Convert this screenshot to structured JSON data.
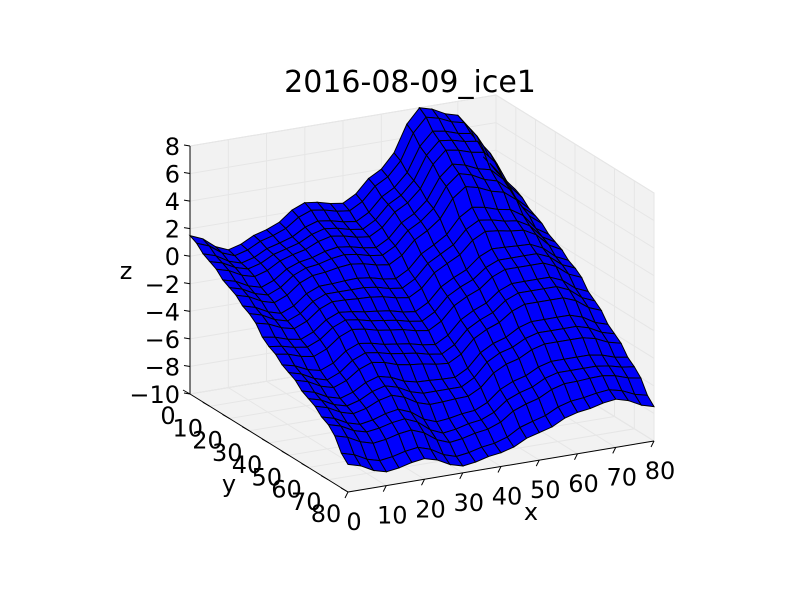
{
  "chart_data": {
    "type": "surface3d",
    "title": "2016-08-09_ice1",
    "xlabel": "x",
    "ylabel": "y",
    "zlabel": "z",
    "xlim": [
      0,
      80
    ],
    "ylim": [
      0,
      80
    ],
    "zlim": [
      -10,
      8
    ],
    "xticks": [
      0,
      10,
      20,
      30,
      40,
      50,
      60,
      70,
      80
    ],
    "yticks": [
      0,
      10,
      20,
      30,
      40,
      50,
      60,
      70,
      80
    ],
    "zticks": [
      -10,
      -8,
      -6,
      -4,
      -2,
      0,
      2,
      4,
      6,
      8
    ],
    "grid": true,
    "surface": {
      "x": [
        0,
        10,
        20,
        30,
        40,
        50,
        60,
        70,
        80
      ],
      "y": [
        0,
        10,
        20,
        30,
        40,
        50,
        60,
        70,
        80
      ],
      "z": [
        [
          1.5,
          0.0,
          1.0,
          2.5,
          2.0,
          4.0,
          8.0,
          7.0,
          2.5
        ],
        [
          0.5,
          -0.5,
          0.5,
          1.5,
          1.0,
          3.0,
          6.5,
          6.0,
          2.0
        ],
        [
          -0.5,
          -1.5,
          0.0,
          0.5,
          0.0,
          2.0,
          5.0,
          4.0,
          1.0
        ],
        [
          -1.5,
          -2.5,
          -1.0,
          -1.0,
          -1.5,
          0.5,
          2.5,
          2.0,
          0.0
        ],
        [
          -3.0,
          -3.5,
          -2.0,
          -2.5,
          -3.0,
          -1.0,
          0.5,
          0.5,
          -1.0
        ],
        [
          -4.0,
          -5.0,
          -3.5,
          -4.0,
          -4.5,
          -2.5,
          -1.0,
          -1.0,
          -2.5
        ],
        [
          -5.0,
          -6.0,
          -5.0,
          -6.0,
          -6.0,
          -4.0,
          -3.0,
          -3.0,
          -4.0
        ],
        [
          -6.0,
          -7.0,
          -6.5,
          -8.0,
          -7.5,
          -6.0,
          -5.0,
          -5.0,
          -5.5
        ],
        [
          -8.0,
          -9.0,
          -8.5,
          -9.5,
          -9.0,
          -8.0,
          -7.0,
          -6.5,
          -7.5
        ]
      ]
    },
    "colors": {
      "surface": "#0000ff",
      "edge": "#000000",
      "pane": "#f2f2f2",
      "grid": "#e6e6e6"
    }
  }
}
